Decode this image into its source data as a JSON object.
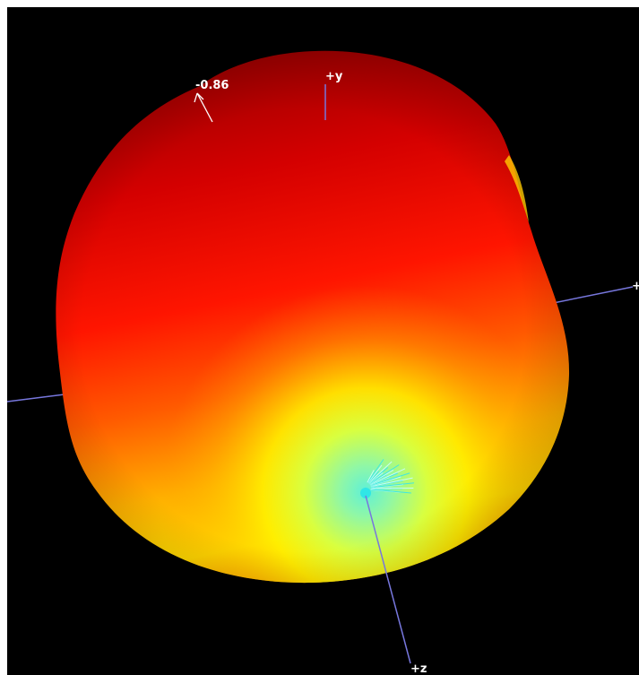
{
  "scene": {
    "annotation_value": "-0.86",
    "axes": {
      "y_label": "+y",
      "x_label": "+x",
      "z_label": "+z"
    },
    "colors": {
      "background": "#000000",
      "axis_line": "#7777dd",
      "surface_top": "#a00000",
      "surface_mid": "#ff1a00",
      "surface_low": "#ffd000",
      "surface_pole": "#6ff5c8"
    }
  }
}
